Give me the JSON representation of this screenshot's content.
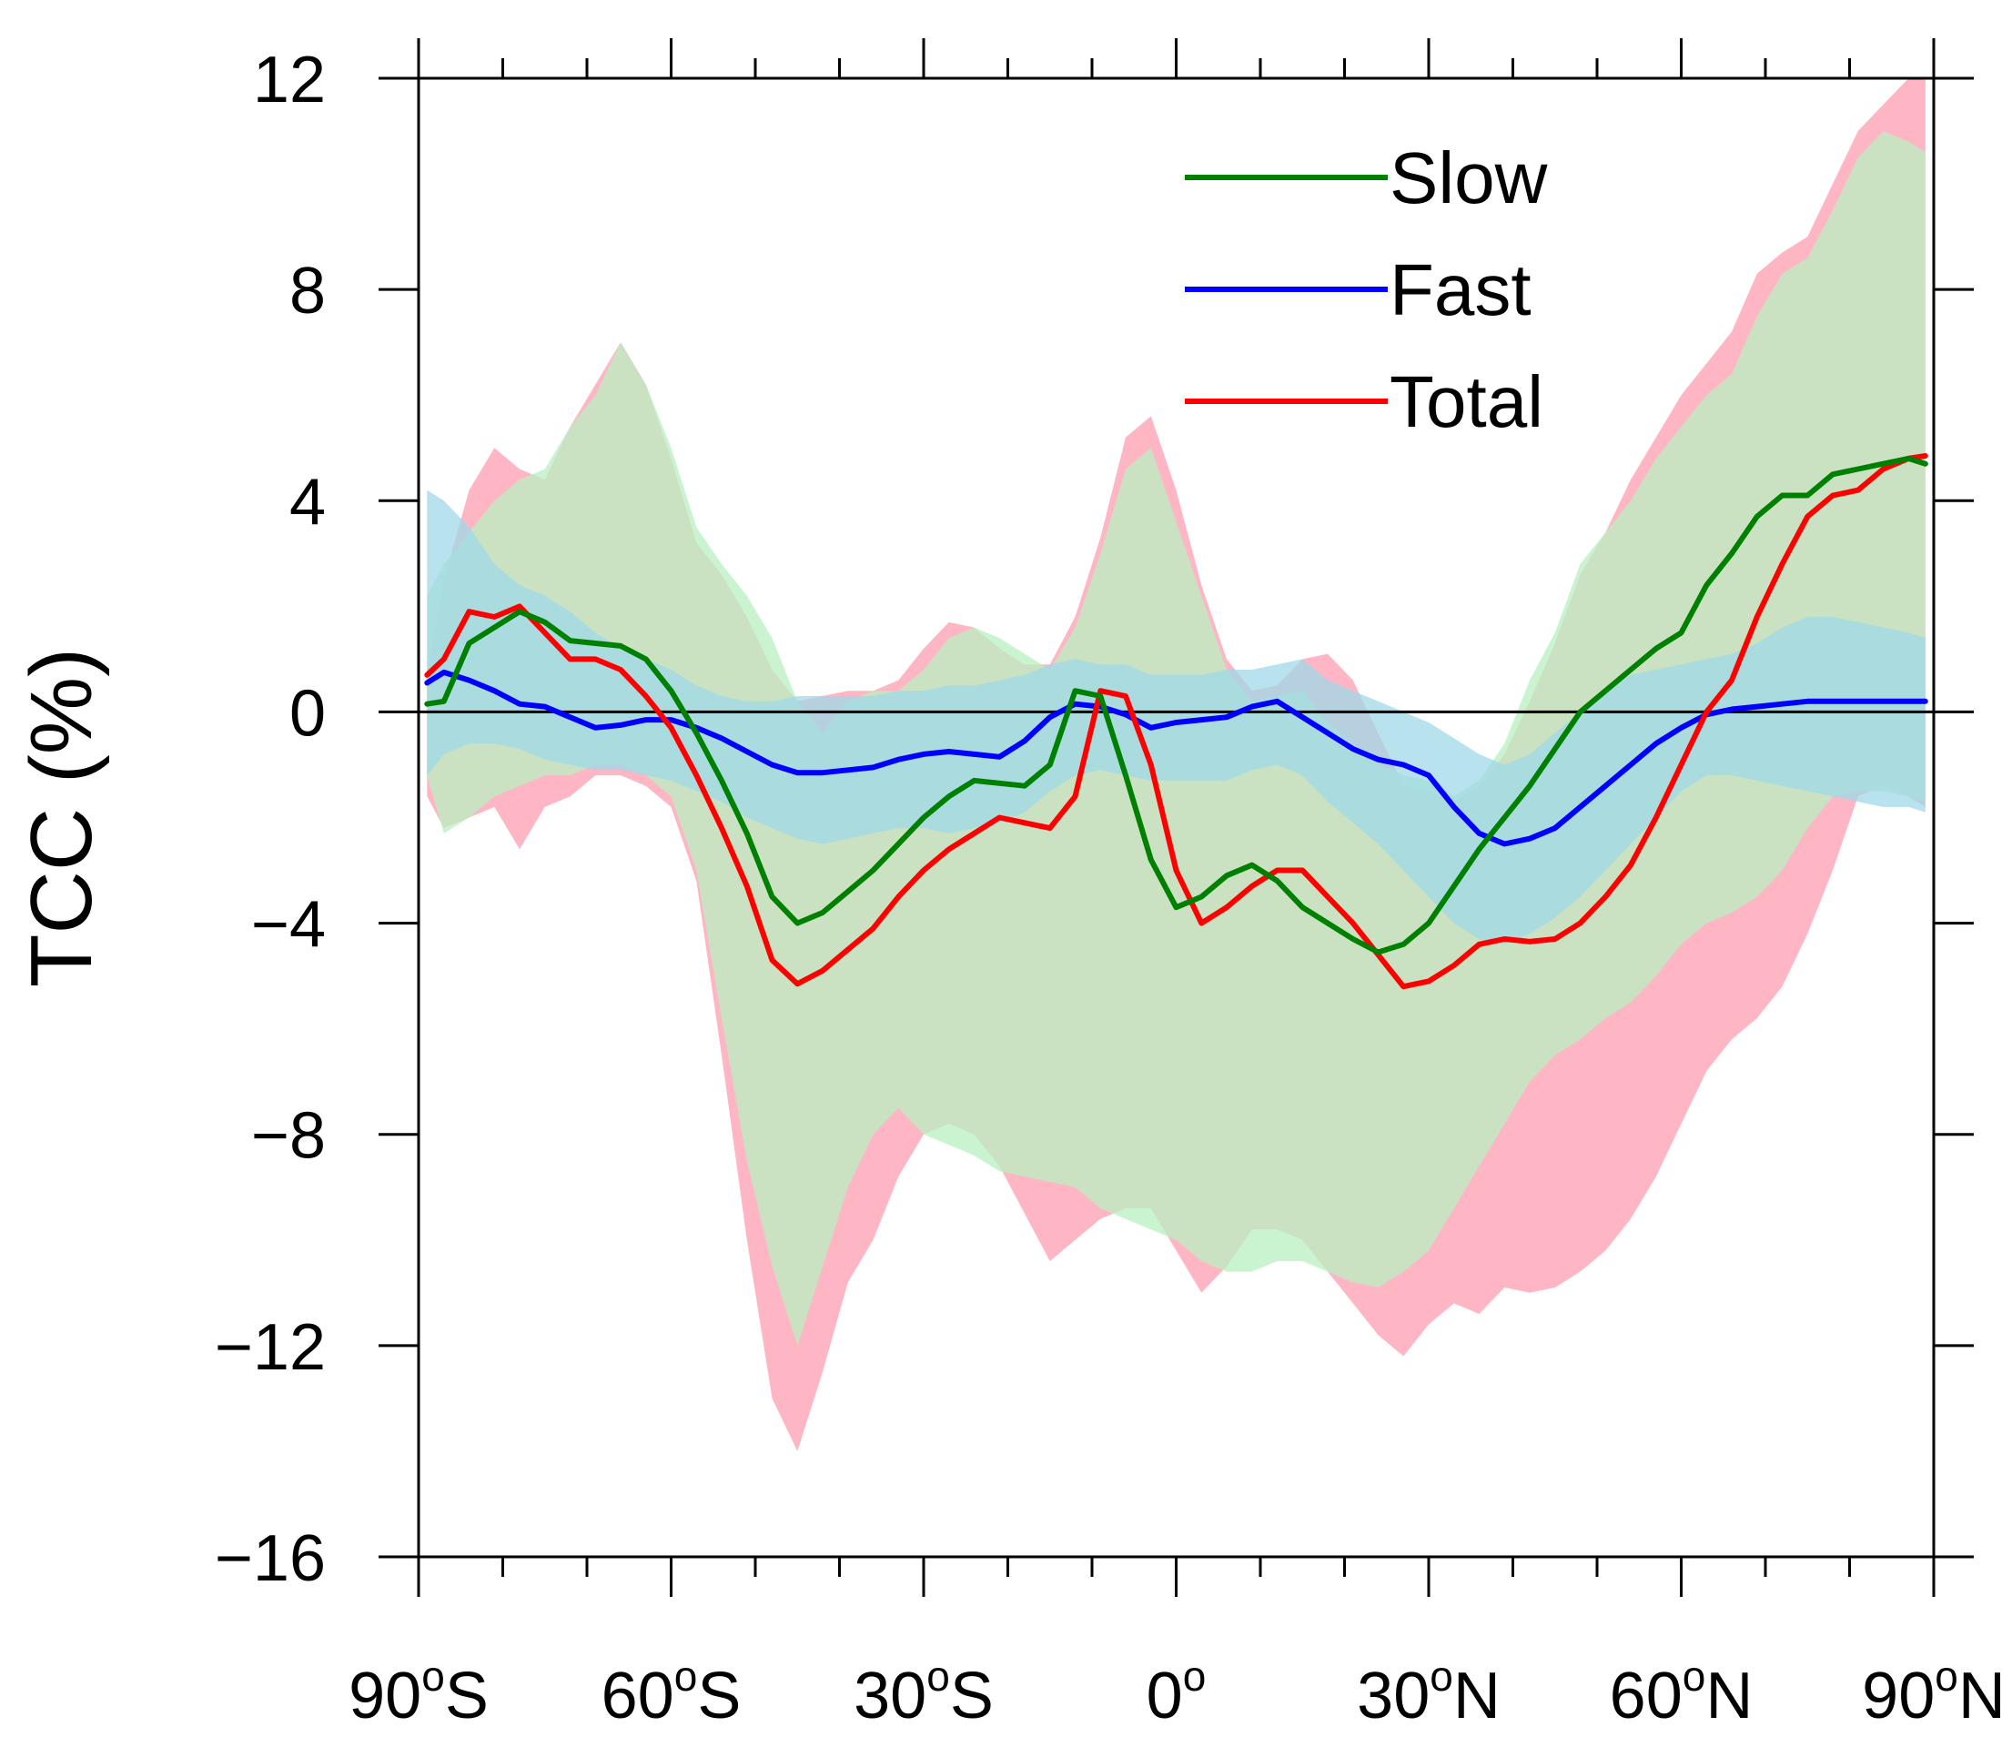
{
  "chart_data": {
    "type": "line",
    "title": "",
    "xlabel": "",
    "ylabel": "TCC (%)",
    "xlim": [
      -90,
      90
    ],
    "ylim": [
      -16,
      12
    ],
    "y_ticks": [
      12,
      8,
      4,
      0,
      -4,
      -8,
      -12,
      -16
    ],
    "y_tick_labels": [
      "12",
      "8",
      "4",
      "0",
      "−4",
      "−8",
      "−12",
      "−16"
    ],
    "x_ticks": [
      -90,
      -60,
      -30,
      0,
      30,
      60,
      90
    ],
    "x_tick_labels": [
      {
        "num": "90",
        "deg": "o",
        "hemi": "S"
      },
      {
        "num": "60",
        "deg": "o",
        "hemi": "S"
      },
      {
        "num": "30",
        "deg": "o",
        "hemi": "S"
      },
      {
        "num": "0",
        "deg": "o",
        "hemi": ""
      },
      {
        "num": "30",
        "deg": "o",
        "hemi": "N"
      },
      {
        "num": "60",
        "deg": "o",
        "hemi": "N"
      },
      {
        "num": "90",
        "deg": "o",
        "hemi": "N"
      }
    ],
    "legend_position": "top-right",
    "series": [
      {
        "name": "Slow",
        "color": "#008000",
        "x": [
          -89,
          -87,
          -84,
          -81,
          -78,
          -75,
          -72,
          -69,
          -66,
          -63,
          -60,
          -57,
          -54,
          -51,
          -48,
          -45,
          -42,
          -39,
          -36,
          -33,
          -30,
          -27,
          -24,
          -21,
          -18,
          -15,
          -12,
          -9,
          -6,
          -3,
          0,
          3,
          6,
          9,
          12,
          15,
          18,
          21,
          24,
          27,
          30,
          33,
          36,
          39,
          42,
          45,
          48,
          51,
          54,
          57,
          60,
          63,
          66,
          69,
          72,
          75,
          78,
          81,
          84,
          87,
          89
        ],
        "values": [
          0.15,
          0.2,
          1.3,
          1.6,
          1.9,
          1.7,
          1.35,
          1.3,
          1.25,
          1.0,
          0.4,
          -0.4,
          -1.3,
          -2.3,
          -3.5,
          -4.0,
          -3.8,
          -3.4,
          -3.0,
          -2.5,
          -2.0,
          -1.6,
          -1.3,
          -1.35,
          -1.4,
          -1.0,
          0.4,
          0.3,
          -1.2,
          -2.8,
          -3.7,
          -3.5,
          -3.1,
          -2.9,
          -3.2,
          -3.7,
          -4.0,
          -4.3,
          -4.55,
          -4.4,
          -4.0,
          -3.3,
          -2.6,
          -2.0,
          -1.4,
          -0.7,
          0.0,
          0.4,
          0.8,
          1.2,
          1.5,
          2.4,
          3.0,
          3.7,
          4.1,
          4.1,
          4.5,
          4.6,
          4.7,
          4.8,
          4.7
        ],
        "band_upper": [
          2.2,
          2.8,
          3.4,
          4.0,
          4.4,
          4.6,
          5.4,
          6.0,
          7.0,
          6.2,
          5.0,
          3.5,
          2.8,
          2.2,
          1.4,
          0.2,
          -0.4,
          0.2,
          0.4,
          0.4,
          0.8,
          1.4,
          1.6,
          1.4,
          1.1,
          0.8,
          1.6,
          3.0,
          4.6,
          5.0,
          3.6,
          2.2,
          0.8,
          0.2,
          0.3,
          0.4,
          -0.2,
          -0.6,
          -1.0,
          -1.2,
          -1.3,
          -1.6,
          -1.3,
          -0.6,
          0.6,
          1.5,
          2.8,
          3.4,
          4.0,
          4.8,
          5.4,
          6.0,
          6.4,
          7.5,
          8.3,
          8.6,
          9.5,
          10.5,
          11.0,
          10.8,
          10.6
        ],
        "band_lower": [
          -1.2,
          -2.3,
          -2.0,
          -1.6,
          -1.4,
          -1.2,
          -1.2,
          -1.0,
          -1.0,
          -1.2,
          -1.6,
          -3.0,
          -5.8,
          -8.5,
          -10.5,
          -12.0,
          -10.5,
          -9.0,
          -8.0,
          -7.5,
          -8.0,
          -8.2,
          -8.4,
          -8.7,
          -8.8,
          -8.9,
          -9.0,
          -9.4,
          -9.6,
          -9.8,
          -10.0,
          -10.4,
          -10.6,
          -10.6,
          -10.4,
          -10.4,
          -10.6,
          -10.8,
          -10.9,
          -10.6,
          -10.2,
          -9.4,
          -8.6,
          -7.8,
          -7.0,
          -6.5,
          -6.2,
          -5.8,
          -5.5,
          -5.0,
          -4.4,
          -4.0,
          -3.8,
          -3.5,
          -3.0,
          -2.2,
          -1.6,
          -1.5,
          -1.5,
          -1.6,
          -1.7
        ],
        "band_color": "#b8f0c0"
      },
      {
        "name": "Fast",
        "color": "#0000ff",
        "x": [
          -89,
          -87,
          -84,
          -81,
          -78,
          -75,
          -72,
          -69,
          -66,
          -63,
          -60,
          -57,
          -54,
          -51,
          -48,
          -45,
          -42,
          -39,
          -36,
          -33,
          -30,
          -27,
          -24,
          -21,
          -18,
          -15,
          -12,
          -9,
          -6,
          -3,
          0,
          3,
          6,
          9,
          12,
          15,
          18,
          21,
          24,
          27,
          30,
          33,
          36,
          39,
          42,
          45,
          48,
          51,
          54,
          57,
          60,
          63,
          66,
          69,
          72,
          75,
          78,
          81,
          84,
          87,
          89
        ],
        "values": [
          0.55,
          0.75,
          0.6,
          0.4,
          0.15,
          0.1,
          -0.1,
          -0.3,
          -0.25,
          -0.15,
          -0.15,
          -0.3,
          -0.5,
          -0.75,
          -1.0,
          -1.15,
          -1.15,
          -1.1,
          -1.05,
          -0.9,
          -0.8,
          -0.75,
          -0.8,
          -0.85,
          -0.55,
          -0.1,
          0.15,
          0.1,
          -0.05,
          -0.3,
          -0.2,
          -0.15,
          -0.1,
          0.1,
          0.2,
          -0.1,
          -0.4,
          -0.7,
          -0.9,
          -1.0,
          -1.2,
          -1.8,
          -2.3,
          -2.5,
          -2.4,
          -2.2,
          -1.8,
          -1.4,
          -1.0,
          -0.6,
          -0.3,
          -0.05,
          0.05,
          0.1,
          0.15,
          0.2,
          0.2,
          0.2,
          0.2,
          0.2,
          0.2
        ],
        "band_upper": [
          4.2,
          4.0,
          3.5,
          2.8,
          2.4,
          2.2,
          1.9,
          1.5,
          1.2,
          1.0,
          0.8,
          0.5,
          0.3,
          0.2,
          0.2,
          0.3,
          0.3,
          0.3,
          0.3,
          0.4,
          0.4,
          0.5,
          0.5,
          0.6,
          0.7,
          0.9,
          1.0,
          0.9,
          0.9,
          0.7,
          0.7,
          0.7,
          0.8,
          0.8,
          0.9,
          1.0,
          0.6,
          0.4,
          0.2,
          0.0,
          -0.2,
          -0.5,
          -0.8,
          -1.0,
          -0.8,
          -0.4,
          0.0,
          0.4,
          0.7,
          0.8,
          0.9,
          1.0,
          1.1,
          1.3,
          1.6,
          1.8,
          1.8,
          1.7,
          1.6,
          1.5,
          1.4
        ],
        "band_lower": [
          -1.2,
          -0.8,
          -0.6,
          -0.6,
          -0.7,
          -0.9,
          -1.0,
          -1.1,
          -1.1,
          -1.2,
          -1.3,
          -1.5,
          -1.7,
          -2.0,
          -2.2,
          -2.4,
          -2.5,
          -2.4,
          -2.3,
          -2.2,
          -2.2,
          -2.3,
          -2.2,
          -2.1,
          -1.9,
          -1.5,
          -1.2,
          -1.1,
          -1.2,
          -1.3,
          -1.3,
          -1.3,
          -1.3,
          -1.1,
          -1.0,
          -1.2,
          -1.7,
          -2.1,
          -2.5,
          -3.0,
          -3.5,
          -4.0,
          -4.3,
          -4.4,
          -4.2,
          -3.9,
          -3.5,
          -3.0,
          -2.5,
          -2.0,
          -1.5,
          -1.2,
          -1.2,
          -1.3,
          -1.4,
          -1.5,
          -1.6,
          -1.7,
          -1.8,
          -1.8,
          -1.9
        ],
        "band_color": "#9fd8e8"
      },
      {
        "name": "Total",
        "color": "#ff0000",
        "x": [
          -89,
          -87,
          -84,
          -81,
          -78,
          -75,
          -72,
          -69,
          -66,
          -63,
          -60,
          -57,
          -54,
          -51,
          -48,
          -45,
          -42,
          -39,
          -36,
          -33,
          -30,
          -27,
          -24,
          -21,
          -18,
          -15,
          -12,
          -9,
          -6,
          -3,
          0,
          3,
          6,
          9,
          12,
          15,
          18,
          21,
          24,
          27,
          30,
          33,
          36,
          39,
          42,
          45,
          48,
          51,
          54,
          57,
          60,
          63,
          66,
          69,
          72,
          75,
          78,
          81,
          84,
          87,
          89
        ],
        "values": [
          0.7,
          1.0,
          1.9,
          1.8,
          2.0,
          1.5,
          1.0,
          1.0,
          0.8,
          0.3,
          -0.3,
          -1.2,
          -2.2,
          -3.3,
          -4.7,
          -5.15,
          -4.9,
          -4.5,
          -4.1,
          -3.5,
          -3.0,
          -2.6,
          -2.3,
          -2.0,
          -2.1,
          -2.2,
          -1.6,
          0.4,
          0.3,
          -1.0,
          -3.0,
          -4.0,
          -3.7,
          -3.3,
          -3.0,
          -3.0,
          -3.5,
          -4.0,
          -4.6,
          -5.2,
          -5.1,
          -4.8,
          -4.4,
          -4.3,
          -4.35,
          -4.3,
          -4.0,
          -3.5,
          -2.9,
          -2.0,
          -1.0,
          0.0,
          0.6,
          1.8,
          2.8,
          3.7,
          4.1,
          4.2,
          4.6,
          4.8,
          4.85
        ],
        "band_upper": [
          0.8,
          2.5,
          4.2,
          5.0,
          4.6,
          4.4,
          5.4,
          6.2,
          7.0,
          6.2,
          4.8,
          3.2,
          2.6,
          1.8,
          0.8,
          0.2,
          0.3,
          0.4,
          0.4,
          0.6,
          1.2,
          1.7,
          1.6,
          1.2,
          0.9,
          0.9,
          1.8,
          3.3,
          5.2,
          5.6,
          4.2,
          2.4,
          1.0,
          0.4,
          0.5,
          1.0,
          1.1,
          0.6,
          -0.4,
          -1.4,
          -1.5,
          -1.7,
          -1.4,
          -0.8,
          0.2,
          1.3,
          2.6,
          3.4,
          4.4,
          5.2,
          6.0,
          6.6,
          7.2,
          8.3,
          8.7,
          9.0,
          10.0,
          11.0,
          11.5,
          12.0,
          12.0
        ],
        "band_lower": [
          -1.6,
          -2.2,
          -2.0,
          -1.8,
          -2.6,
          -1.8,
          -1.6,
          -1.2,
          -1.2,
          -1.4,
          -1.8,
          -3.2,
          -6.5,
          -10.0,
          -13.0,
          -14.0,
          -12.5,
          -10.8,
          -10.0,
          -8.8,
          -8.0,
          -7.8,
          -8.0,
          -8.6,
          -9.5,
          -10.4,
          -10.0,
          -9.6,
          -9.4,
          -9.4,
          -10.2,
          -11.0,
          -10.5,
          -9.8,
          -9.8,
          -10.0,
          -10.6,
          -11.2,
          -11.8,
          -12.2,
          -11.6,
          -11.2,
          -11.4,
          -10.9,
          -11.0,
          -10.9,
          -10.6,
          -10.2,
          -9.6,
          -8.8,
          -7.8,
          -6.8,
          -6.2,
          -5.8,
          -5.2,
          -4.2,
          -3.0,
          -1.6,
          -1.4,
          -1.6,
          -1.8
        ],
        "band_color": "#ffb6c4"
      }
    ]
  }
}
